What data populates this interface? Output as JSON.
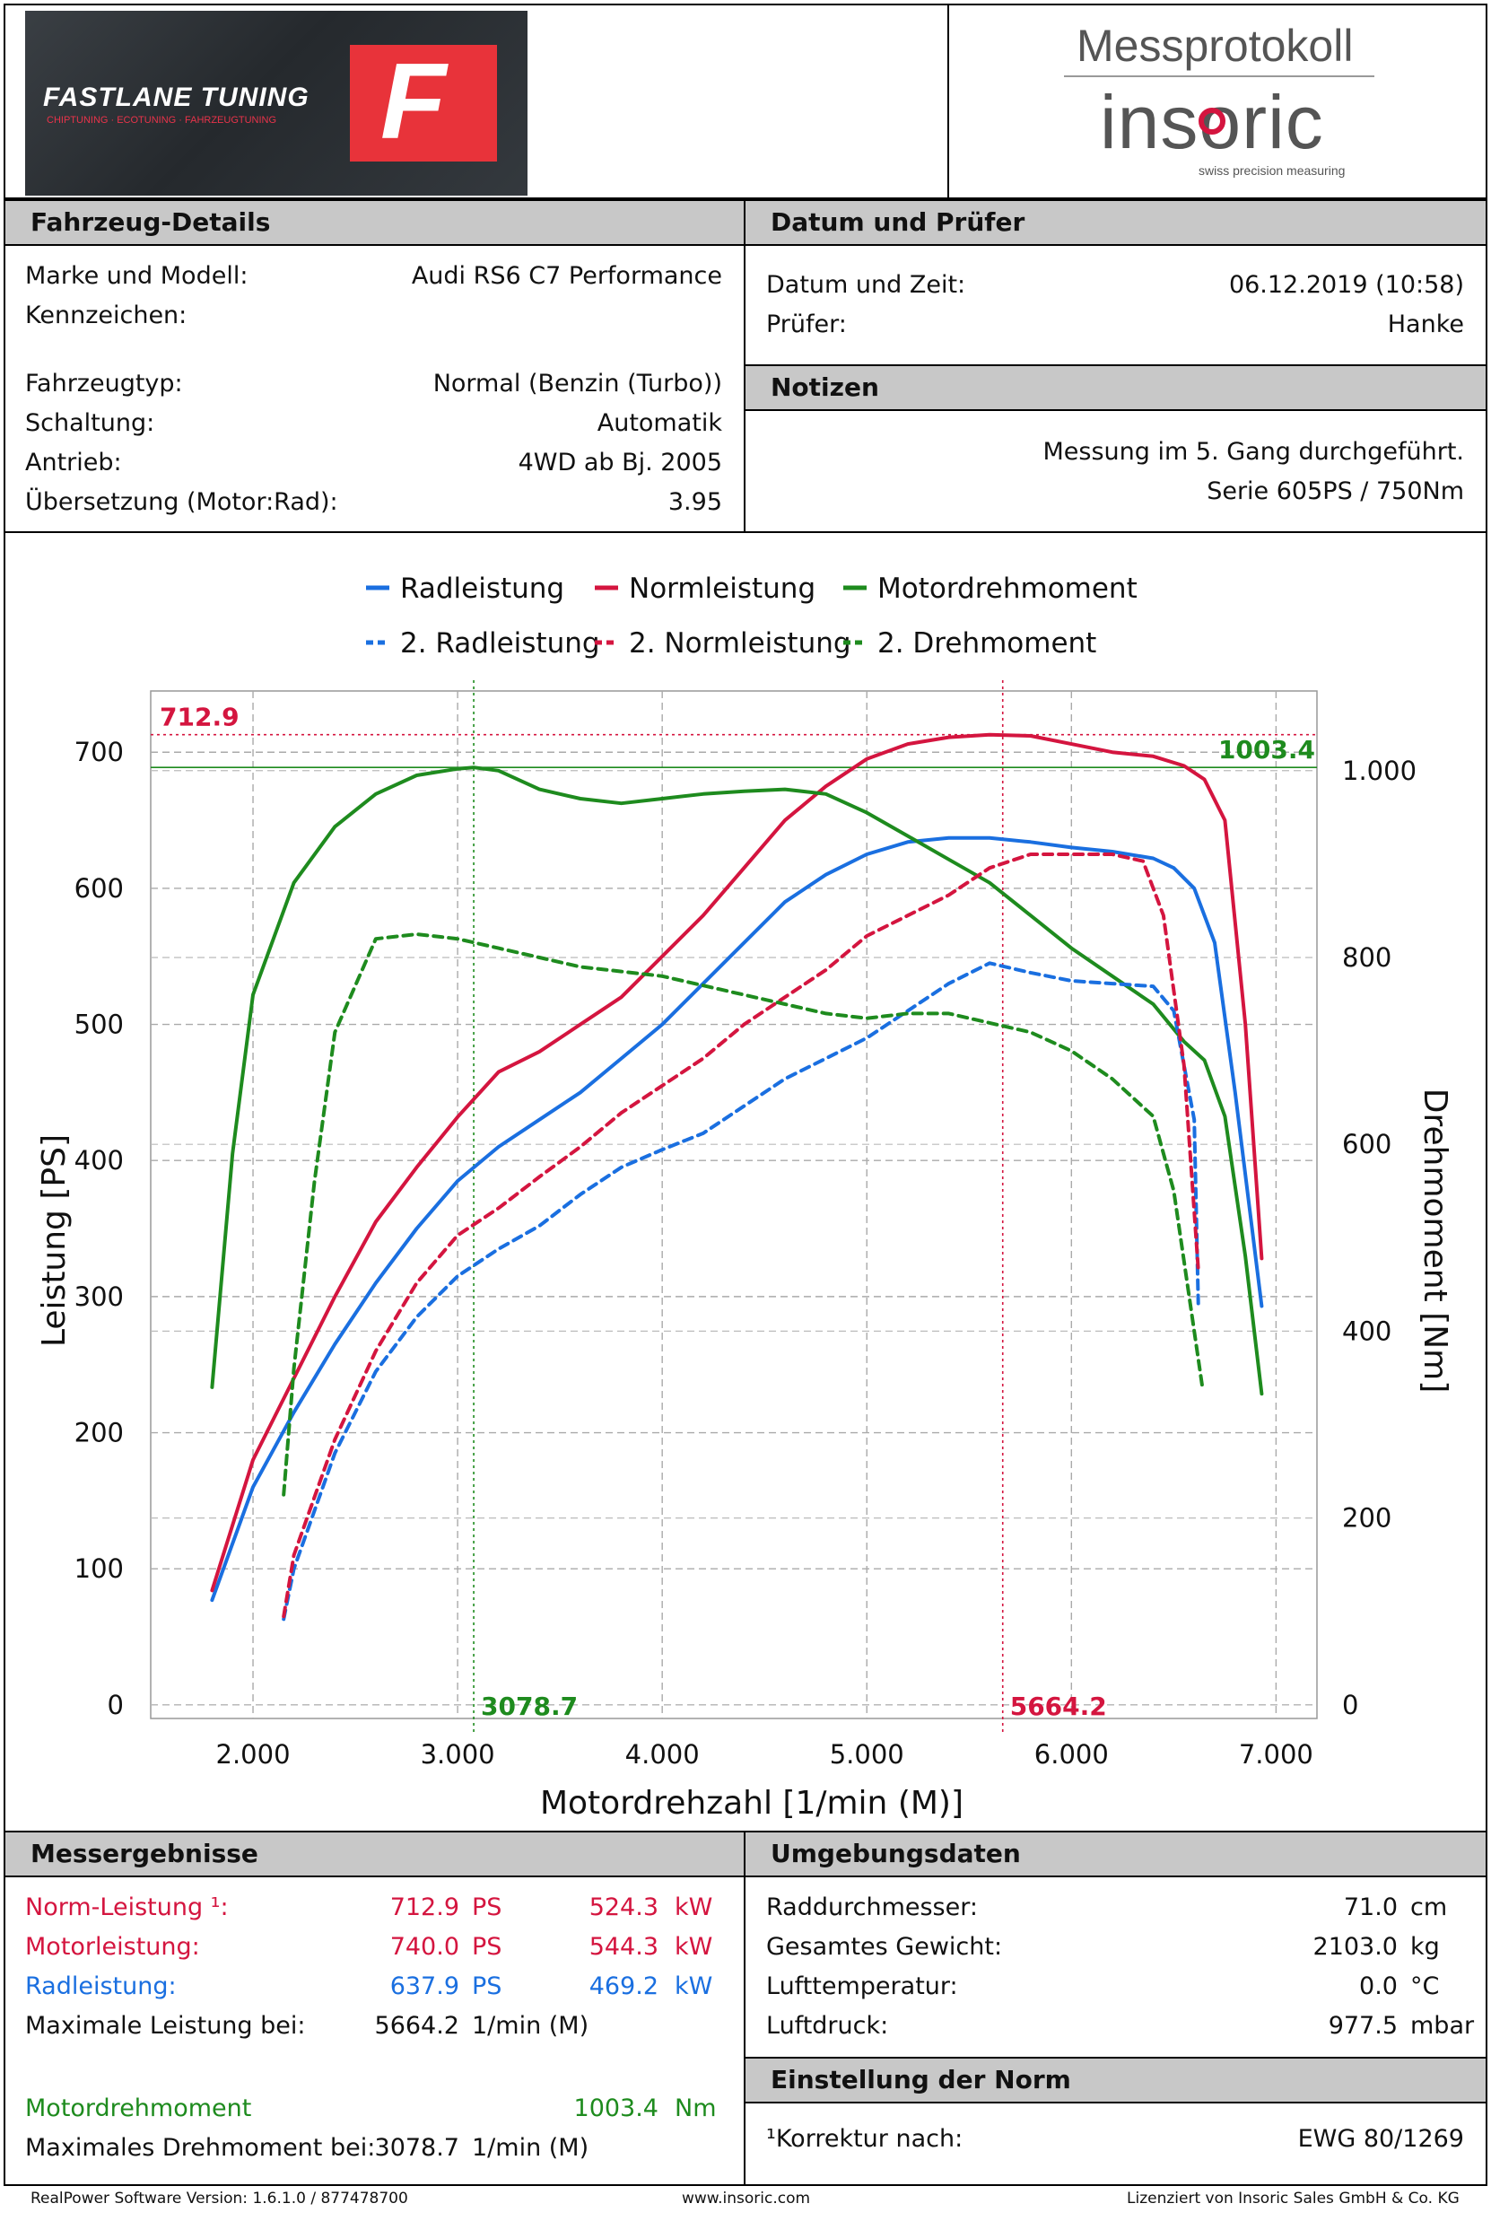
{
  "branding": {
    "tuner_name": "FASTLANE TUNING",
    "tuner_tagline": "CHIPTUNING · ECOTUNING · FAHRZEUGTUNING",
    "tuner_mark": "F",
    "doc_title": "Messprotokoll",
    "maker_logo": "insoric",
    "maker_tagline": "swiss precision measuring"
  },
  "vehicle": {
    "header": "Fahrzeug-Details",
    "rows": [
      {
        "label": "Marke und Modell:",
        "value": "Audi RS6 C7 Performance"
      },
      {
        "label": "Kennzeichen:",
        "value": ""
      },
      {
        "label": "Fahrzeugtyp:",
        "value": "Normal (Benzin (Turbo))"
      },
      {
        "label": "Schaltung:",
        "value": "Automatik"
      },
      {
        "label": "Antrieb:",
        "value": "4WD ab Bj. 2005"
      },
      {
        "label": "Übersetzung (Motor:Rad):",
        "value": "3.95"
      }
    ]
  },
  "date_examiner": {
    "header": "Datum und Prüfer",
    "rows": [
      {
        "label": "Datum und Zeit:",
        "value": "06.12.2019 (10:58)"
      },
      {
        "label": "Prüfer:",
        "value": "Hanke"
      }
    ]
  },
  "notes": {
    "header": "Notizen",
    "lines": [
      "Messung im 5. Gang durchgeführt.",
      "Serie 605PS / 750Nm"
    ]
  },
  "results": {
    "header": "Messergebnisse",
    "norm": {
      "label": "Norm-Leistung ¹:",
      "ps": "712.9",
      "ps_unit": "PS",
      "kw": "524.3",
      "kw_unit": "kW"
    },
    "motor": {
      "label": "Motorleistung:",
      "ps": "740.0",
      "ps_unit": "PS",
      "kw": "544.3",
      "kw_unit": "kW"
    },
    "wheel": {
      "label": "Radleistung:",
      "ps": "637.9",
      "ps_unit": "PS",
      "kw": "469.2",
      "kw_unit": "kW"
    },
    "max_power_at": {
      "label": "Maximale Leistung bei:",
      "value": "5664.2",
      "unit": "1/min (M)"
    },
    "torque": {
      "label": "Motordrehmoment",
      "value": "1003.4",
      "unit": "Nm"
    },
    "max_torque_at": {
      "label": "Maximales Drehmoment bei:",
      "value": "3078.7",
      "unit": "1/min (M)"
    }
  },
  "environment": {
    "header": "Umgebungsdaten",
    "rows": [
      {
        "label": "Raddurchmesser:",
        "value": "71.0",
        "unit": "cm"
      },
      {
        "label": "Gesamtes Gewicht:",
        "value": "2103.0",
        "unit": "kg"
      },
      {
        "label": "Lufttemperatur:",
        "value": "0.0",
        "unit": "°C"
      },
      {
        "label": "Luftdruck:",
        "value": "977.5",
        "unit": "mbar"
      }
    ]
  },
  "norm_setting": {
    "header": "Einstellung der Norm",
    "label": "¹Korrektur nach:",
    "value": "EWG 80/1269"
  },
  "footer": {
    "left": "RealPower Software Version: 1.6.1.0 / 877478700",
    "center": "www.insoric.com",
    "right": "Lizenziert von Insoric Sales GmbH & Co. KG"
  },
  "chart_data": {
    "type": "line",
    "xlabel": "Motordrehzahl [1/min (M)]",
    "ylabel": "Leistung [PS]",
    "y2label": "Drehmoment [Nm]",
    "xlim": [
      1500,
      7200
    ],
    "ylim": [
      -10,
      745
    ],
    "y2lim": [
      -14.57,
      1085.27
    ],
    "x_ticks": [
      2000,
      3000,
      4000,
      5000,
      6000,
      7000
    ],
    "x_tick_labels": [
      "2.000",
      "3.000",
      "4.000",
      "5.000",
      "6.000",
      "7.000"
    ],
    "y_ticks": [
      0,
      100,
      200,
      300,
      400,
      500,
      600,
      700
    ],
    "y_tick_labels": [
      "0",
      "100",
      "200",
      "300",
      "400",
      "500",
      "600",
      "700"
    ],
    "y2_ticks": [
      0,
      200,
      400,
      600,
      800,
      1000
    ],
    "y2_tick_labels": [
      "0",
      "200",
      "400",
      "600",
      "800",
      "1.000"
    ],
    "markers": {
      "max_power": {
        "value": 712.9,
        "label": "712.9",
        "rpm": 5664.2,
        "rpm_label": "5664.2"
      },
      "max_torque": {
        "value": 1003.4,
        "label": "1003.4",
        "rpm": 3078.7,
        "rpm_label": "3078.7"
      }
    },
    "series": [
      {
        "name": "Radleistung",
        "color": "#1a6fe0",
        "dash": false,
        "axis": "left",
        "x": [
          1800,
          2000,
          2200,
          2400,
          2600,
          2800,
          3000,
          3200,
          3400,
          3600,
          3800,
          4000,
          4200,
          4400,
          4600,
          4800,
          5000,
          5200,
          5400,
          5600,
          5800,
          6000,
          6200,
          6400,
          6500,
          6600,
          6700,
          6800,
          6930
        ],
        "y": [
          77,
          160,
          215,
          265,
          310,
          350,
          385,
          410,
          430,
          450,
          475,
          500,
          530,
          560,
          590,
          610,
          625,
          634,
          637,
          637,
          634,
          630,
          627,
          622,
          615,
          600,
          560,
          450,
          293
        ]
      },
      {
        "name": "Normleistung",
        "color": "#d4153f",
        "dash": false,
        "axis": "left",
        "x": [
          1800,
          2000,
          2200,
          2400,
          2600,
          2800,
          3000,
          3200,
          3400,
          3600,
          3800,
          4000,
          4200,
          4400,
          4600,
          4800,
          5000,
          5200,
          5400,
          5600,
          5800,
          6000,
          6200,
          6400,
          6550,
          6650,
          6750,
          6850,
          6930
        ],
        "y": [
          84,
          180,
          240,
          300,
          355,
          395,
          432,
          465,
          480,
          500,
          520,
          550,
          580,
          615,
          650,
          675,
          695,
          706,
          711,
          712.9,
          712,
          706,
          700,
          697,
          690,
          680,
          650,
          500,
          328
        ]
      },
      {
        "name": "Motordrehmoment",
        "color": "#1e8b1e",
        "dash": false,
        "axis": "right",
        "x": [
          1800,
          1900,
          2000,
          2200,
          2400,
          2600,
          2800,
          3000,
          3078.7,
          3200,
          3400,
          3600,
          3800,
          4000,
          4200,
          4400,
          4600,
          4800,
          5000,
          5200,
          5400,
          5600,
          5800,
          6000,
          6200,
          6400,
          6550,
          6650,
          6750,
          6850,
          6930
        ],
        "y": [
          340,
          590,
          760,
          880,
          940,
          975,
          995,
          1002,
          1003.4,
          1000,
          980,
          970,
          965,
          970,
          975,
          978,
          980,
          975,
          955,
          930,
          905,
          880,
          845,
          810,
          780,
          750,
          710,
          690,
          630,
          480,
          333
        ]
      },
      {
        "name": "2. Radleistung",
        "color": "#1a6fe0",
        "dash": true,
        "axis": "left",
        "x": [
          2150,
          2200,
          2400,
          2600,
          2800,
          3000,
          3200,
          3400,
          3600,
          3800,
          4000,
          4200,
          4400,
          4600,
          4800,
          5000,
          5200,
          5400,
          5600,
          5800,
          6000,
          6200,
          6400,
          6500,
          6600,
          6620
        ],
        "y": [
          63,
          100,
          185,
          245,
          285,
          315,
          335,
          352,
          375,
          395,
          408,
          420,
          440,
          460,
          475,
          490,
          510,
          530,
          545,
          538,
          532,
          530,
          528,
          510,
          430,
          295
        ]
      },
      {
        "name": "2. Normleistung",
        "color": "#d4153f",
        "dash": true,
        "axis": "left",
        "x": [
          2150,
          2200,
          2400,
          2600,
          2800,
          3000,
          3200,
          3400,
          3600,
          3800,
          4000,
          4200,
          4400,
          4600,
          4800,
          5000,
          5200,
          5400,
          5600,
          5800,
          6000,
          6200,
          6350,
          6450,
          6550,
          6620
        ],
        "y": [
          65,
          110,
          195,
          260,
          310,
          345,
          365,
          388,
          410,
          435,
          455,
          475,
          500,
          520,
          540,
          565,
          580,
          595,
          615,
          625,
          625,
          625,
          620,
          580,
          470,
          320
        ]
      },
      {
        "name": "2. Drehmoment",
        "color": "#1e8b1e",
        "dash": true,
        "axis": "right",
        "x": [
          2150,
          2200,
          2300,
          2400,
          2600,
          2800,
          3000,
          3200,
          3400,
          3600,
          3800,
          4000,
          4200,
          4400,
          4600,
          4800,
          5000,
          5200,
          5400,
          5600,
          5800,
          6000,
          6200,
          6400,
          6500,
          6600,
          6640
        ],
        "y": [
          225,
          360,
          560,
          720,
          820,
          825,
          820,
          810,
          800,
          790,
          785,
          780,
          770,
          760,
          750,
          740,
          735,
          740,
          740,
          730,
          720,
          700,
          670,
          630,
          550,
          400,
          340
        ]
      }
    ]
  }
}
